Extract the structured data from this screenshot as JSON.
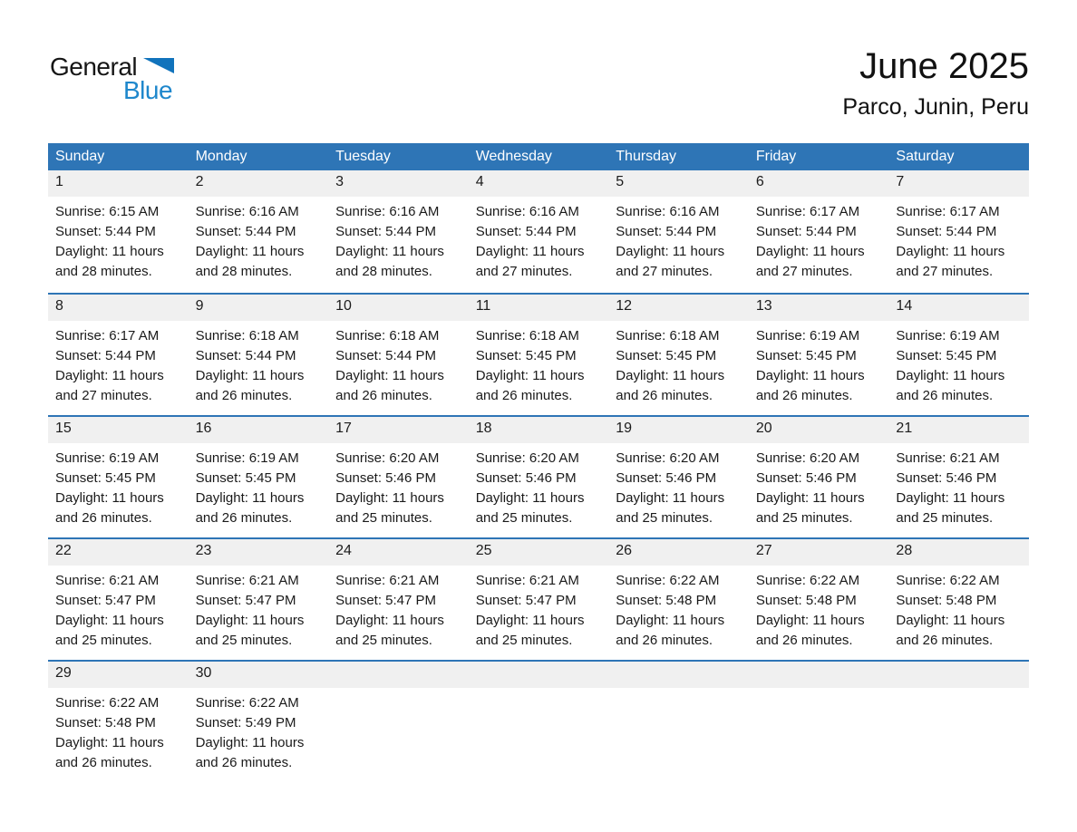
{
  "logo": {
    "part1": "General",
    "part2": "Blue"
  },
  "header": {
    "month_title": "June 2025",
    "location_subtitle": "Parco, Junin, Peru"
  },
  "colors": {
    "accent_blue": "#2E75B6",
    "band_gray": "#F0F0F0",
    "logo_text_blue": "#1E87CC",
    "logo_triangle_blue": "#1173BC"
  },
  "calendar": {
    "weekdays": [
      "Sunday",
      "Monday",
      "Tuesday",
      "Wednesday",
      "Thursday",
      "Friday",
      "Saturday"
    ],
    "weeks": [
      {
        "days": [
          {
            "n": "1",
            "lines": [
              "Sunrise: 6:15 AM",
              "Sunset: 5:44 PM",
              "Daylight: 11 hours",
              "and 28 minutes."
            ]
          },
          {
            "n": "2",
            "lines": [
              "Sunrise: 6:16 AM",
              "Sunset: 5:44 PM",
              "Daylight: 11 hours",
              "and 28 minutes."
            ]
          },
          {
            "n": "3",
            "lines": [
              "Sunrise: 6:16 AM",
              "Sunset: 5:44 PM",
              "Daylight: 11 hours",
              "and 28 minutes."
            ]
          },
          {
            "n": "4",
            "lines": [
              "Sunrise: 6:16 AM",
              "Sunset: 5:44 PM",
              "Daylight: 11 hours",
              "and 27 minutes."
            ]
          },
          {
            "n": "5",
            "lines": [
              "Sunrise: 6:16 AM",
              "Sunset: 5:44 PM",
              "Daylight: 11 hours",
              "and 27 minutes."
            ]
          },
          {
            "n": "6",
            "lines": [
              "Sunrise: 6:17 AM",
              "Sunset: 5:44 PM",
              "Daylight: 11 hours",
              "and 27 minutes."
            ]
          },
          {
            "n": "7",
            "lines": [
              "Sunrise: 6:17 AM",
              "Sunset: 5:44 PM",
              "Daylight: 11 hours",
              "and 27 minutes."
            ]
          }
        ]
      },
      {
        "days": [
          {
            "n": "8",
            "lines": [
              "Sunrise: 6:17 AM",
              "Sunset: 5:44 PM",
              "Daylight: 11 hours",
              "and 27 minutes."
            ]
          },
          {
            "n": "9",
            "lines": [
              "Sunrise: 6:18 AM",
              "Sunset: 5:44 PM",
              "Daylight: 11 hours",
              "and 26 minutes."
            ]
          },
          {
            "n": "10",
            "lines": [
              "Sunrise: 6:18 AM",
              "Sunset: 5:44 PM",
              "Daylight: 11 hours",
              "and 26 minutes."
            ]
          },
          {
            "n": "11",
            "lines": [
              "Sunrise: 6:18 AM",
              "Sunset: 5:45 PM",
              "Daylight: 11 hours",
              "and 26 minutes."
            ]
          },
          {
            "n": "12",
            "lines": [
              "Sunrise: 6:18 AM",
              "Sunset: 5:45 PM",
              "Daylight: 11 hours",
              "and 26 minutes."
            ]
          },
          {
            "n": "13",
            "lines": [
              "Sunrise: 6:19 AM",
              "Sunset: 5:45 PM",
              "Daylight: 11 hours",
              "and 26 minutes."
            ]
          },
          {
            "n": "14",
            "lines": [
              "Sunrise: 6:19 AM",
              "Sunset: 5:45 PM",
              "Daylight: 11 hours",
              "and 26 minutes."
            ]
          }
        ]
      },
      {
        "days": [
          {
            "n": "15",
            "lines": [
              "Sunrise: 6:19 AM",
              "Sunset: 5:45 PM",
              "Daylight: 11 hours",
              "and 26 minutes."
            ]
          },
          {
            "n": "16",
            "lines": [
              "Sunrise: 6:19 AM",
              "Sunset: 5:45 PM",
              "Daylight: 11 hours",
              "and 26 minutes."
            ]
          },
          {
            "n": "17",
            "lines": [
              "Sunrise: 6:20 AM",
              "Sunset: 5:46 PM",
              "Daylight: 11 hours",
              "and 25 minutes."
            ]
          },
          {
            "n": "18",
            "lines": [
              "Sunrise: 6:20 AM",
              "Sunset: 5:46 PM",
              "Daylight: 11 hours",
              "and 25 minutes."
            ]
          },
          {
            "n": "19",
            "lines": [
              "Sunrise: 6:20 AM",
              "Sunset: 5:46 PM",
              "Daylight: 11 hours",
              "and 25 minutes."
            ]
          },
          {
            "n": "20",
            "lines": [
              "Sunrise: 6:20 AM",
              "Sunset: 5:46 PM",
              "Daylight: 11 hours",
              "and 25 minutes."
            ]
          },
          {
            "n": "21",
            "lines": [
              "Sunrise: 6:21 AM",
              "Sunset: 5:46 PM",
              "Daylight: 11 hours",
              "and 25 minutes."
            ]
          }
        ]
      },
      {
        "days": [
          {
            "n": "22",
            "lines": [
              "Sunrise: 6:21 AM",
              "Sunset: 5:47 PM",
              "Daylight: 11 hours",
              "and 25 minutes."
            ]
          },
          {
            "n": "23",
            "lines": [
              "Sunrise: 6:21 AM",
              "Sunset: 5:47 PM",
              "Daylight: 11 hours",
              "and 25 minutes."
            ]
          },
          {
            "n": "24",
            "lines": [
              "Sunrise: 6:21 AM",
              "Sunset: 5:47 PM",
              "Daylight: 11 hours",
              "and 25 minutes."
            ]
          },
          {
            "n": "25",
            "lines": [
              "Sunrise: 6:21 AM",
              "Sunset: 5:47 PM",
              "Daylight: 11 hours",
              "and 25 minutes."
            ]
          },
          {
            "n": "26",
            "lines": [
              "Sunrise: 6:22 AM",
              "Sunset: 5:48 PM",
              "Daylight: 11 hours",
              "and 26 minutes."
            ]
          },
          {
            "n": "27",
            "lines": [
              "Sunrise: 6:22 AM",
              "Sunset: 5:48 PM",
              "Daylight: 11 hours",
              "and 26 minutes."
            ]
          },
          {
            "n": "28",
            "lines": [
              "Sunrise: 6:22 AM",
              "Sunset: 5:48 PM",
              "Daylight: 11 hours",
              "and 26 minutes."
            ]
          }
        ]
      },
      {
        "days": [
          {
            "n": "29",
            "lines": [
              "Sunrise: 6:22 AM",
              "Sunset: 5:48 PM",
              "Daylight: 11 hours",
              "and 26 minutes."
            ]
          },
          {
            "n": "30",
            "lines": [
              "Sunrise: 6:22 AM",
              "Sunset: 5:49 PM",
              "Daylight: 11 hours",
              "and 26 minutes."
            ]
          }
        ]
      }
    ]
  }
}
